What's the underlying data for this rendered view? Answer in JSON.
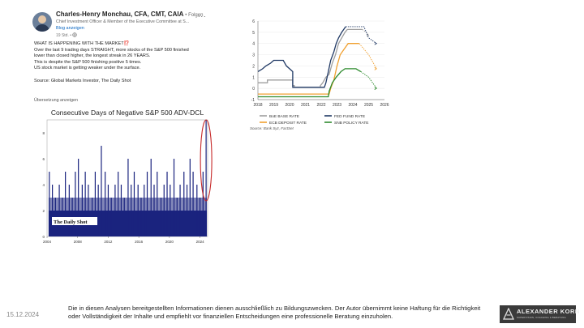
{
  "post": {
    "author": "Charles-Henry Monchau, CFA, CMT, CAIA",
    "follow_label": "• Folgen",
    "headline": "Chief Investment Officer & Member of the Executive Committee at S...",
    "blog_link": "Blog anzeigen",
    "age": "19 Std. •",
    "more_label": "...",
    "title": "WHAT IS HAPPENING WITH THE MARKET",
    "title_emoji": "⁉️",
    "lines": [
      "Over the last 9 trading days STRAIGHT, more stocks of the S&P 500 finished",
      "lower than closed higher, the longest streak in 26 YEARS.",
      "This is despite the S&P 500 finishing positive 5 times.",
      "US stock market is getting weaker under the surface."
    ],
    "source": "Source: Global Markets Investor, The Daily Shot",
    "translate_label": "Übersetzung anzeigen"
  },
  "chart_data": [
    {
      "type": "bar",
      "title": "Consecutive Days of Negative S&P 500 ADV-DCL",
      "watermark": "The Daily Shot",
      "x_ticks": [
        "2004",
        "2008",
        "2012",
        "2016",
        "2020",
        "2024"
      ],
      "y_ticks": [
        "0",
        "2",
        "4",
        "6",
        "8"
      ],
      "ylim": [
        0,
        9
      ],
      "xlim": [
        2004,
        2025
      ],
      "bar_color": "#1a237e",
      "highlight_color": "#c62828",
      "series_x": [
        2004.3,
        2004.7,
        2005.1,
        2005.6,
        2006.0,
        2006.4,
        2006.9,
        2007.3,
        2007.7,
        2008.1,
        2008.6,
        2009.0,
        2009.4,
        2009.9,
        2010.3,
        2010.7,
        2011.1,
        2011.6,
        2012.0,
        2012.4,
        2012.9,
        2013.3,
        2013.7,
        2014.1,
        2014.6,
        2015.0,
        2015.4,
        2015.9,
        2016.3,
        2016.7,
        2017.1,
        2017.6,
        2018.0,
        2018.4,
        2018.9,
        2019.3,
        2019.7,
        2020.1,
        2020.6,
        2021.0,
        2021.4,
        2021.9,
        2022.3,
        2022.7,
        2023.1,
        2023.6,
        2024.0,
        2024.4,
        2024.8
      ],
      "values": [
        5,
        4,
        3,
        4,
        3,
        5,
        4,
        3,
        5,
        6,
        4,
        5,
        4,
        3,
        5,
        4,
        7,
        5,
        4,
        3,
        4,
        5,
        4,
        3,
        6,
        4,
        5,
        4,
        3,
        4,
        5,
        6,
        4,
        5,
        3,
        4,
        5,
        4,
        6,
        3,
        4,
        5,
        4,
        6,
        5,
        4,
        3,
        5,
        9
      ]
    },
    {
      "type": "line",
      "x_ticks": [
        "2018",
        "2019",
        "2020",
        "2021",
        "2022",
        "2023",
        "2024",
        "2025",
        "2026"
      ],
      "y_ticks": [
        "-1",
        "0",
        "1",
        "2",
        "3",
        "4",
        "5",
        "6"
      ],
      "xlim": [
        2018,
        2026
      ],
      "ylim": [
        -1,
        6
      ],
      "source": "Source: Bank Syz, FactSet",
      "series": [
        {
          "name": "BoE BASE RATE",
          "color": "#9e9e9e",
          "x": [
            2018,
            2018.6,
            2018.6,
            2020.2,
            2020.2,
            2020.3,
            2020.3,
            2021.95,
            2021.95,
            2022.1,
            2022.3,
            2022.5,
            2022.7,
            2022.9,
            2023.1,
            2023.3,
            2023.5,
            2023.65,
            2024.6,
            2024.85,
            2025.0
          ],
          "y": [
            0.5,
            0.5,
            0.75,
            0.75,
            0.25,
            0.25,
            0.1,
            0.1,
            0.25,
            0.5,
            1.0,
            1.25,
            2.25,
            3.0,
            4.0,
            4.5,
            5.0,
            5.25,
            5.25,
            5.0,
            4.75
          ]
        },
        {
          "name": "FED FUND RATE",
          "color": "#1f3864",
          "x": [
            2018,
            2018.3,
            2018.5,
            2018.8,
            2019.0,
            2019.6,
            2019.8,
            2020.0,
            2020.2,
            2020.2,
            2022.2,
            2022.3,
            2022.45,
            2022.6,
            2022.8,
            2022.95,
            2023.1,
            2023.3,
            2023.55,
            2024.7,
            2024.85,
            2025.0,
            2025.5
          ],
          "y": [
            1.5,
            1.75,
            2.0,
            2.25,
            2.5,
            2.5,
            2.0,
            1.75,
            1.5,
            0.1,
            0.1,
            0.5,
            1.5,
            2.5,
            3.25,
            4.0,
            4.5,
            5.0,
            5.5,
            5.5,
            5.0,
            4.5,
            4.0
          ]
        },
        {
          "name": "ECB DEPOSIT RATE",
          "color": "#f0a030",
          "x": [
            2018,
            2022.5,
            2022.6,
            2022.8,
            2023.0,
            2023.2,
            2023.45,
            2023.7,
            2024.4,
            2024.7,
            2025.0,
            2025.5
          ],
          "y": [
            -0.5,
            -0.5,
            0.0,
            0.75,
            2.0,
            3.0,
            3.5,
            4.0,
            4.0,
            3.5,
            3.0,
            1.75
          ]
        },
        {
          "name": "SNB POLICY RATE",
          "color": "#2e8b2e",
          "x": [
            2018,
            2022.45,
            2022.5,
            2022.7,
            2022.95,
            2023.25,
            2023.5,
            2024.2,
            2024.5,
            2024.75,
            2025.0,
            2025.5
          ],
          "y": [
            -0.75,
            -0.75,
            -0.25,
            0.5,
            1.0,
            1.5,
            1.75,
            1.75,
            1.5,
            1.25,
            1.0,
            0.0
          ]
        }
      ],
      "dashed_from": 2024.6
    }
  ],
  "footer": {
    "date": "15.12.2024",
    "disclaimer": "Die in diesen Analysen bereitgestellten Informationen dienen ausschließlich zu Bildungszwecken. Der Autor übernimmt keine Haftung für die Richtigkeit oder Vollständigkeit der Inhalte und empfiehlt vor finanziellen Entscheidungen eine professionelle Beratung einzuholen.",
    "logo_name": "ALEXANDER KORN",
    "logo_tagline": "SUPERVISION, COACHING & BERATUNG"
  }
}
